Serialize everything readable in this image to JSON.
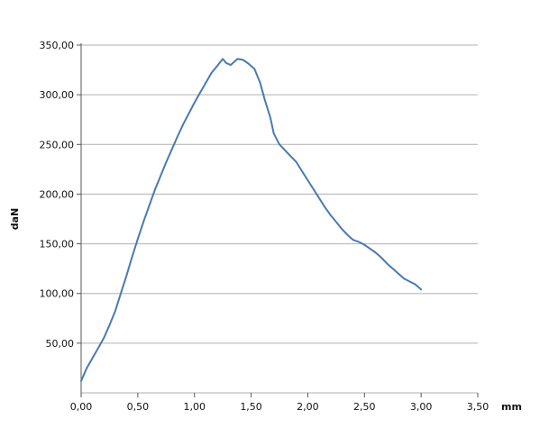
{
  "chart_data": {
    "type": "line",
    "title": "",
    "xlabel": "mm",
    "ylabel": "daN",
    "xlim": [
      0,
      3.5
    ],
    "ylim": [
      0,
      350
    ],
    "grid": "horizontal",
    "legend": "none",
    "x_ticks": [
      {
        "value": 0,
        "label": "0,00"
      },
      {
        "value": 0.5,
        "label": "0,50"
      },
      {
        "value": 1.0,
        "label": "1,00"
      },
      {
        "value": 1.5,
        "label": "1,50"
      },
      {
        "value": 2.0,
        "label": "2,00"
      },
      {
        "value": 2.5,
        "label": "2,50"
      },
      {
        "value": 3.0,
        "label": "3,00"
      },
      {
        "value": 3.5,
        "label": "3,50"
      }
    ],
    "y_ticks": [
      {
        "value": 50,
        "label": "50,00"
      },
      {
        "value": 100,
        "label": "100,00"
      },
      {
        "value": 150,
        "label": "150,00"
      },
      {
        "value": 200,
        "label": "200,00"
      },
      {
        "value": 250,
        "label": "250,00"
      },
      {
        "value": 300,
        "label": "300,00"
      },
      {
        "value": 350,
        "label": "350,00"
      }
    ],
    "series": [
      {
        "color": "#4a7ab0",
        "points": [
          [
            0.0,
            12
          ],
          [
            0.05,
            25
          ],
          [
            0.1,
            35
          ],
          [
            0.15,
            45
          ],
          [
            0.2,
            55
          ],
          [
            0.25,
            68
          ],
          [
            0.3,
            82
          ],
          [
            0.35,
            100
          ],
          [
            0.4,
            118
          ],
          [
            0.45,
            137
          ],
          [
            0.5,
            155
          ],
          [
            0.55,
            172
          ],
          [
            0.6,
            188
          ],
          [
            0.65,
            204
          ],
          [
            0.7,
            218
          ],
          [
            0.75,
            232
          ],
          [
            0.8,
            245
          ],
          [
            0.85,
            258
          ],
          [
            0.9,
            270
          ],
          [
            0.95,
            281
          ],
          [
            1.0,
            292
          ],
          [
            1.05,
            302
          ],
          [
            1.1,
            312
          ],
          [
            1.15,
            322
          ],
          [
            1.2,
            329
          ],
          [
            1.25,
            336
          ],
          [
            1.28,
            332
          ],
          [
            1.32,
            330
          ],
          [
            1.38,
            336
          ],
          [
            1.43,
            335
          ],
          [
            1.48,
            331
          ],
          [
            1.53,
            326
          ],
          [
            1.58,
            312
          ],
          [
            1.62,
            295
          ],
          [
            1.67,
            277
          ],
          [
            1.7,
            261
          ],
          [
            1.75,
            250
          ],
          [
            1.8,
            244
          ],
          [
            1.85,
            238
          ],
          [
            1.9,
            232
          ],
          [
            1.95,
            223
          ],
          [
            2.0,
            214
          ],
          [
            2.05,
            205
          ],
          [
            2.1,
            196
          ],
          [
            2.15,
            187
          ],
          [
            2.2,
            179
          ],
          [
            2.25,
            172
          ],
          [
            2.3,
            165
          ],
          [
            2.35,
            159
          ],
          [
            2.4,
            154
          ],
          [
            2.45,
            152
          ],
          [
            2.5,
            149
          ],
          [
            2.55,
            145
          ],
          [
            2.6,
            141
          ],
          [
            2.65,
            136
          ],
          [
            2.7,
            130
          ],
          [
            2.75,
            125
          ],
          [
            2.8,
            120
          ],
          [
            2.85,
            115
          ],
          [
            2.9,
            112
          ],
          [
            2.95,
            109
          ],
          [
            3.0,
            104
          ]
        ]
      }
    ]
  }
}
